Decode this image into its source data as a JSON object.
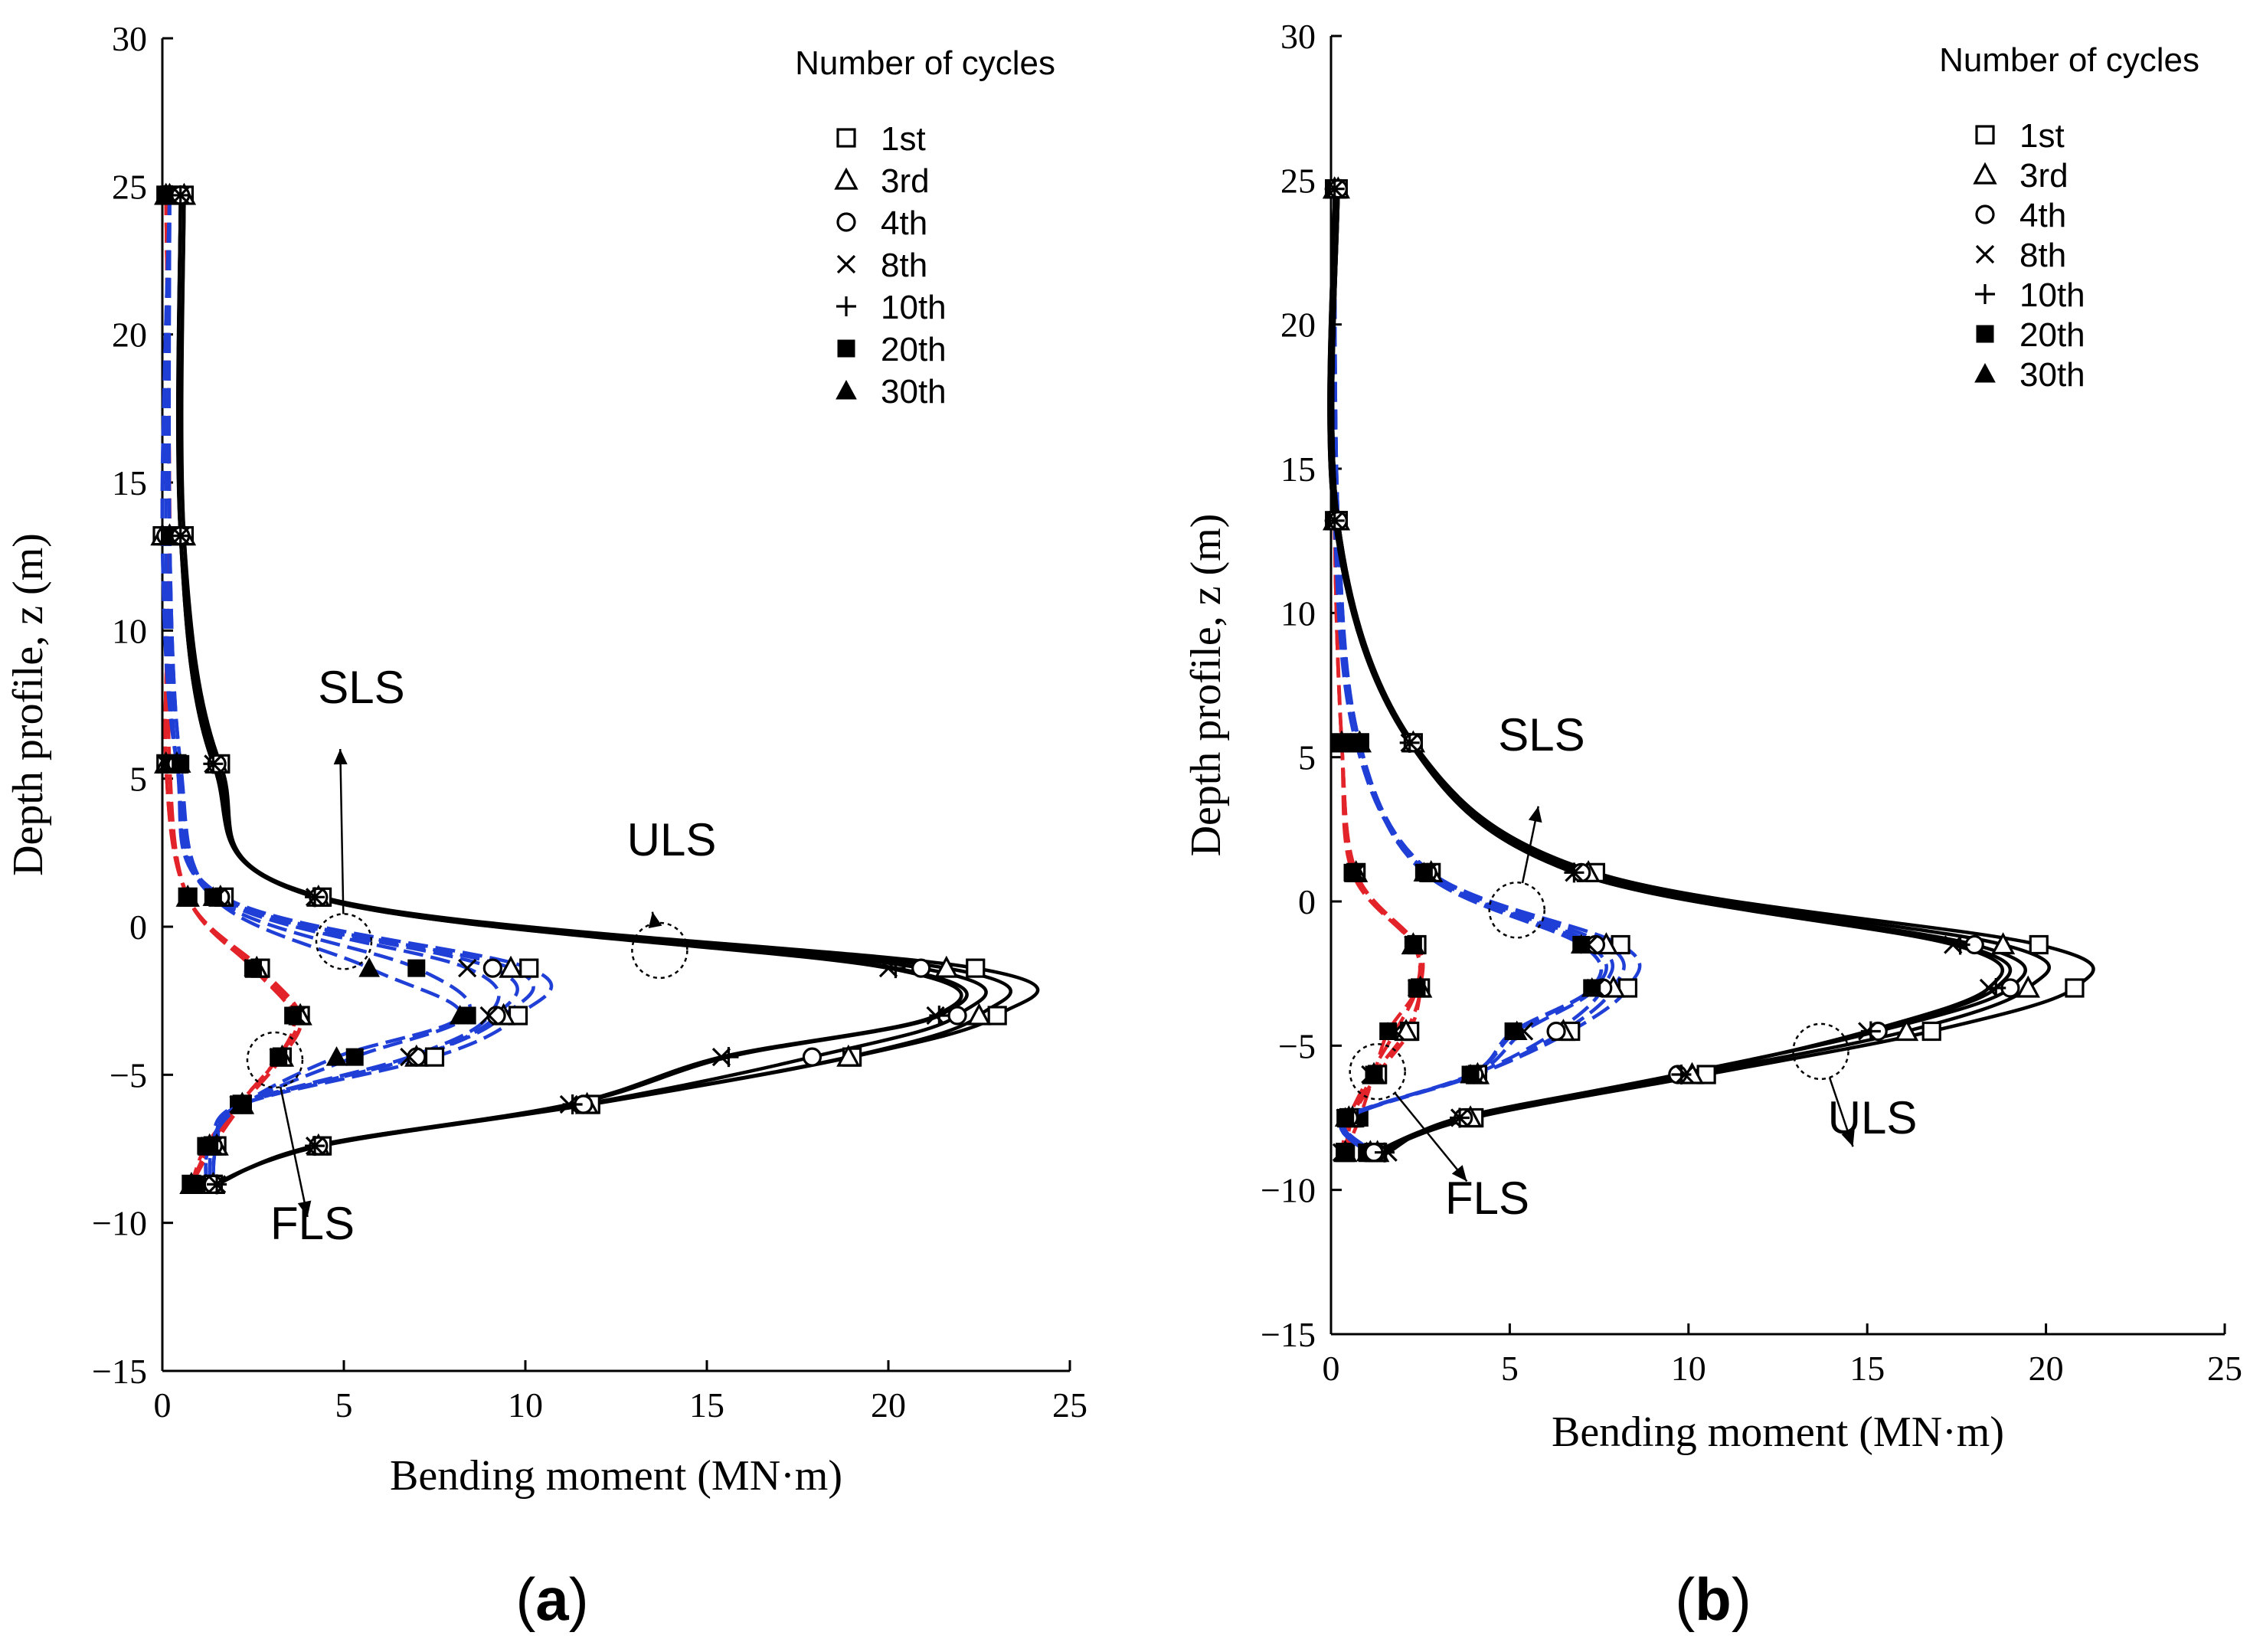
{
  "figure": {
    "panels": [
      {
        "label_open": "(",
        "label_letter": "a",
        "label_close": ")"
      },
      {
        "label_open": "(",
        "label_letter": "b",
        "label_close": ")"
      }
    ]
  },
  "chart_data": [
    {
      "type": "line",
      "title": "",
      "xlabel": "Bending moment (MN·m)",
      "ylabel": "Depth profile, z (m)",
      "xlim": [
        0,
        25
      ],
      "ylim": [
        -15,
        30
      ],
      "xticks": [
        0,
        5,
        10,
        15,
        20,
        25
      ],
      "yticks": [
        -15,
        -10,
        -5,
        0,
        5,
        10,
        15,
        20,
        25,
        30
      ],
      "ytick_labels": [
        "−15",
        "−10",
        "−5",
        "0",
        "5",
        "10",
        "15",
        "20",
        "25",
        "30"
      ],
      "legend": {
        "title": "Number of cycles",
        "position": "top-right",
        "entries": [
          {
            "label": "1st",
            "marker": "square-open"
          },
          {
            "label": "3rd",
            "marker": "triangle-open"
          },
          {
            "label": "4th",
            "marker": "circle-open"
          },
          {
            "label": "8th",
            "marker": "x"
          },
          {
            "label": "10th",
            "marker": "plus"
          },
          {
            "label": "20th",
            "marker": "square-filled"
          },
          {
            "label": "30th",
            "marker": "triangle-filled"
          }
        ]
      },
      "depth": [
        24.7,
        13.2,
        5.5,
        1.0,
        -1.4,
        -3.0,
        -4.4,
        -6.0,
        -7.4,
        -8.7
      ],
      "groups": [
        {
          "name": "ULS",
          "color": "#000000",
          "dash": "solid",
          "series": [
            {
              "name": "1st",
              "values": [
                0.6,
                0.6,
                1.6,
                4.4,
                22.4,
                23.0,
                19.0,
                11.8,
                4.4,
                1.4
              ]
            },
            {
              "name": "3rd",
              "values": [
                0.6,
                0.6,
                1.5,
                4.3,
                21.6,
                22.5,
                18.9,
                11.7,
                4.3,
                1.4
              ]
            },
            {
              "name": "4th",
              "values": [
                0.5,
                0.5,
                1.5,
                4.3,
                20.9,
                21.9,
                17.9,
                11.6,
                4.3,
                1.4
              ]
            },
            {
              "name": "8th",
              "values": [
                0.5,
                0.5,
                1.4,
                4.2,
                20.0,
                21.3,
                15.4,
                11.2,
                4.2,
                1.5
              ]
            },
            {
              "name": "10th",
              "values": [
                0.5,
                0.5,
                1.4,
                4.2,
                20.2,
                21.4,
                15.6,
                11.3,
                4.2,
                1.5
              ]
            }
          ]
        },
        {
          "name": "SLS",
          "color": "#1f3fd6",
          "dash": "dashed",
          "series": [
            {
              "name": "1st",
              "values": [
                0.2,
                0.0,
                0.4,
                1.7,
                10.1,
                9.8,
                7.5,
                2.2,
                1.5,
                1.4
              ]
            },
            {
              "name": "3rd",
              "values": [
                0.2,
                0.0,
                0.4,
                1.6,
                9.6,
                9.4,
                7.0,
                2.2,
                1.5,
                1.4
              ]
            },
            {
              "name": "4th",
              "values": [
                0.2,
                0.1,
                0.4,
                1.6,
                9.1,
                9.2,
                7.0,
                2.2,
                1.4,
                1.3
              ]
            },
            {
              "name": "8th",
              "values": [
                0.2,
                0.2,
                0.4,
                1.5,
                8.4,
                9.0,
                6.8,
                2.1,
                1.4,
                1.3
              ]
            },
            {
              "name": "20th",
              "values": [
                0.2,
                0.2,
                0.5,
                1.4,
                7.0,
                8.4,
                5.3,
                2.2,
                1.3,
                1.2
              ]
            },
            {
              "name": "30th",
              "values": [
                0.2,
                0.2,
                0.5,
                1.4,
                5.7,
                8.2,
                4.8,
                2.2,
                1.3,
                1.2
              ]
            }
          ]
        },
        {
          "name": "FLS",
          "color": "#e3232a",
          "dash": "dashed",
          "series": [
            {
              "name": "1st",
              "values": [
                0.1,
                0.2,
                0.1,
                0.7,
                2.7,
                3.8,
                3.3,
                2.2,
                1.4,
                0.8
              ]
            },
            {
              "name": "3rd",
              "values": [
                0.1,
                0.2,
                0.1,
                0.7,
                2.6,
                3.8,
                3.3,
                2.2,
                1.3,
                0.8
              ]
            },
            {
              "name": "8th",
              "values": [
                0.1,
                0.2,
                0.1,
                0.7,
                2.5,
                3.7,
                3.2,
                2.1,
                1.3,
                0.8
              ]
            },
            {
              "name": "20th",
              "values": [
                0.1,
                0.2,
                0.2,
                0.7,
                2.5,
                3.6,
                3.2,
                2.1,
                1.2,
                0.8
              ]
            }
          ]
        }
      ],
      "annotations": [
        {
          "text": "SLS",
          "points_to": "SLS curves near (5, -0.5)"
        },
        {
          "text": "ULS",
          "points_to": "ULS curves near (13.7, -0.8)"
        },
        {
          "text": "FLS",
          "points_to": "FLS curves near (3.1, -4.5)"
        }
      ]
    },
    {
      "type": "line",
      "title": "",
      "xlabel": "Bending moment (MN·m)",
      "ylabel": "Depth profile, z (m)",
      "xlim": [
        0,
        25
      ],
      "ylim": [
        -15,
        30
      ],
      "xticks": [
        0,
        5,
        10,
        15,
        20,
        25
      ],
      "yticks": [
        -15,
        -10,
        -5,
        0,
        5,
        10,
        15,
        20,
        25,
        30
      ],
      "ytick_labels": [
        "−15",
        "−10",
        "−5",
        "0",
        "5",
        "10",
        "15",
        "20",
        "25",
        "30"
      ],
      "legend": {
        "title": "Number of cycles",
        "position": "top-right",
        "entries": [
          {
            "label": "1st",
            "marker": "square-open"
          },
          {
            "label": "3rd",
            "marker": "triangle-open"
          },
          {
            "label": "4th",
            "marker": "circle-open"
          },
          {
            "label": "8th",
            "marker": "x"
          },
          {
            "label": "10th",
            "marker": "plus"
          },
          {
            "label": "20th",
            "marker": "square-filled"
          },
          {
            "label": "30th",
            "marker": "triangle-filled"
          }
        ]
      },
      "depth": [
        24.7,
        13.2,
        5.5,
        1.0,
        -1.5,
        -3.0,
        -4.5,
        -6.0,
        -7.5,
        -8.7
      ],
      "groups": [
        {
          "name": "ULS",
          "color": "#000000",
          "dash": "solid",
          "series": [
            {
              "name": "1st",
              "values": [
                0.2,
                0.2,
                2.3,
                7.4,
                19.8,
                20.8,
                16.8,
                10.5,
                4.0,
                1.3
              ]
            },
            {
              "name": "3rd",
              "values": [
                0.2,
                0.2,
                2.3,
                7.2,
                18.8,
                19.5,
                16.1,
                10.1,
                3.9,
                1.3
              ]
            },
            {
              "name": "4th",
              "values": [
                0.2,
                0.2,
                2.3,
                7.0,
                18.0,
                19.0,
                15.3,
                9.7,
                3.7,
                1.2
              ]
            },
            {
              "name": "8th",
              "values": [
                0.1,
                0.1,
                2.2,
                6.8,
                17.4,
                18.4,
                15.0,
                9.9,
                3.6,
                1.6
              ]
            },
            {
              "name": "10th",
              "values": [
                0.1,
                0.1,
                2.2,
                6.8,
                17.6,
                18.6,
                15.1,
                9.8,
                3.6,
                1.5
              ]
            }
          ]
        },
        {
          "name": "SLS",
          "color": "#1f3fd6",
          "dash": "dashed",
          "series": [
            {
              "name": "1st",
              "values": [
                0.1,
                0.2,
                0.8,
                2.8,
                8.1,
                8.3,
                6.7,
                4.1,
                0.5,
                1.2
              ]
            },
            {
              "name": "3rd",
              "values": [
                0.1,
                0.2,
                0.8,
                2.8,
                7.7,
                7.9,
                6.5,
                4.1,
                0.5,
                1.1
              ]
            },
            {
              "name": "4th",
              "values": [
                0.1,
                0.2,
                0.8,
                2.7,
                7.4,
                7.6,
                6.3,
                4.0,
                0.5,
                1.1
              ]
            },
            {
              "name": "8th",
              "values": [
                0.1,
                0.1,
                0.7,
                2.7,
                7.2,
                7.4,
                5.4,
                4.0,
                0.4,
                1.0
              ]
            },
            {
              "name": "20th",
              "values": [
                0.1,
                0.1,
                0.8,
                2.6,
                7.0,
                7.3,
                5.1,
                3.9,
                0.4,
                1.0
              ]
            },
            {
              "name": "30th",
              "values": [
                0.1,
                0.1,
                0.8,
                2.6,
                7.0,
                7.3,
                5.2,
                3.9,
                0.4,
                1.0
              ]
            }
          ]
        },
        {
          "name": "FLS",
          "color": "#e3232a",
          "dash": "dashed",
          "series": [
            {
              "name": "1st",
              "values": [
                0.1,
                0.1,
                0.3,
                0.7,
                2.4,
                2.5,
                2.2,
                1.3,
                0.6,
                0.4
              ]
            },
            {
              "name": "3rd",
              "values": [
                0.1,
                0.1,
                0.3,
                0.7,
                2.3,
                2.5,
                2.1,
                1.2,
                0.6,
                0.4
              ]
            },
            {
              "name": "8th",
              "values": [
                0.1,
                0.1,
                0.3,
                0.7,
                2.3,
                2.4,
                1.8,
                1.1,
                0.5,
                0.3
              ]
            },
            {
              "name": "20th",
              "values": [
                0.1,
                0.1,
                0.3,
                0.6,
                2.3,
                2.4,
                1.6,
                1.2,
                0.8,
                0.4
              ]
            }
          ]
        }
      ],
      "annotations": [
        {
          "text": "SLS",
          "points_to": "SLS curves near (5.2, -0.3)"
        },
        {
          "text": "ULS",
          "points_to": "ULS curves near (13.7, -5.2)"
        },
        {
          "text": "FLS",
          "points_to": "FLS curves near (1.3, -5.9)"
        }
      ]
    }
  ]
}
